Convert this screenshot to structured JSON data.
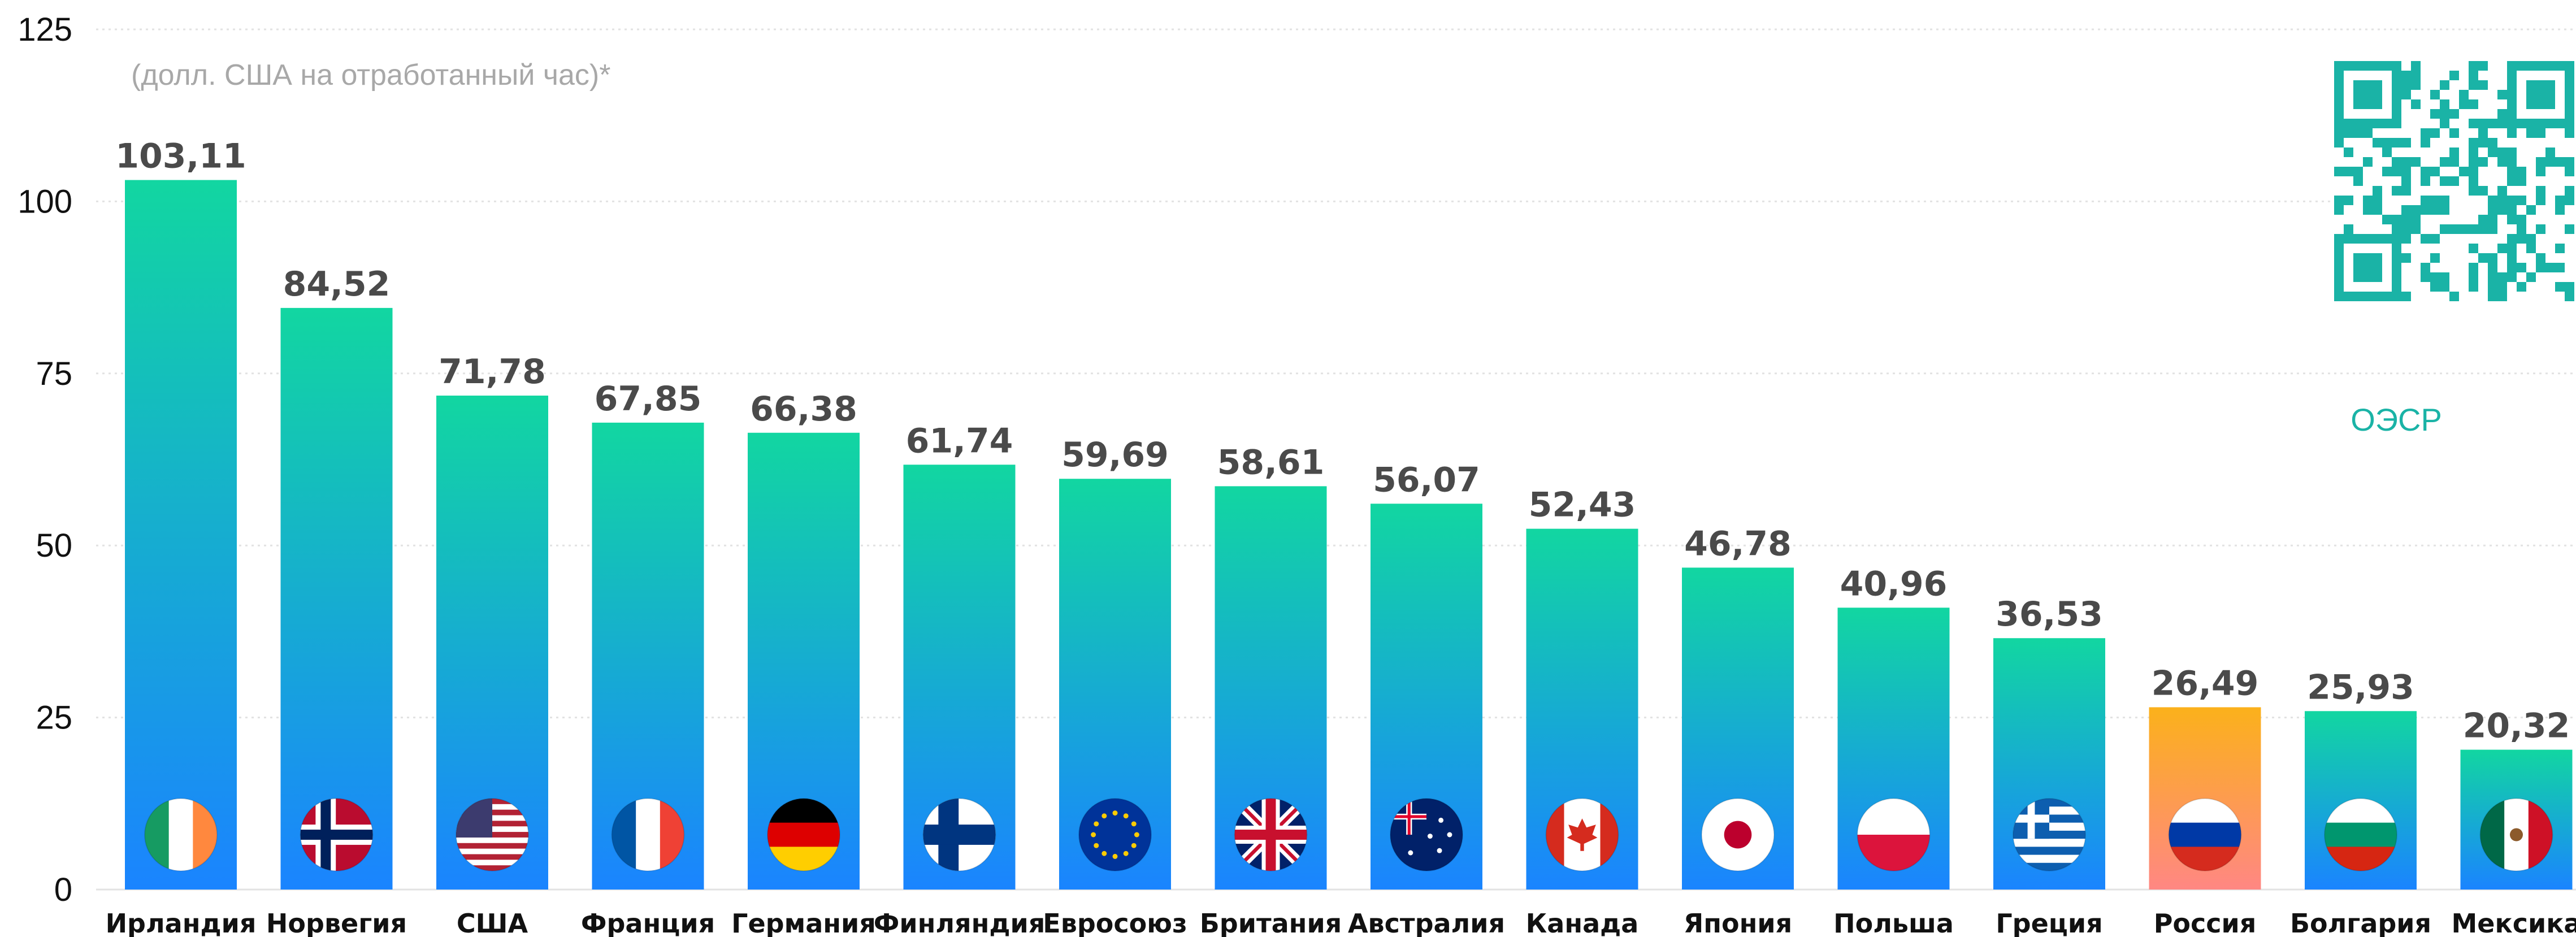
{
  "chart_data": {
    "type": "bar",
    "subtitle": "(долл. США на отработанный час)*",
    "source_label": "ОЭСР",
    "categories": [
      "Ирландия",
      "Норвегия",
      "США",
      "Франция",
      "Германия",
      "Финляндия",
      "Евросоюз",
      "Британия",
      "Австралия",
      "Канада",
      "Япония",
      "Польша",
      "Греция",
      "Россия",
      "Болгария",
      "Мексика"
    ],
    "values": [
      103.11,
      84.52,
      71.78,
      67.85,
      66.38,
      61.74,
      59.69,
      58.61,
      56.07,
      52.43,
      46.78,
      40.96,
      36.53,
      26.49,
      25.93,
      20.32
    ],
    "value_labels": [
      "103,11",
      "84,52",
      "71,78",
      "67,85",
      "66,38",
      "61,74",
      "59,69",
      "58,61",
      "56,07",
      "52,43",
      "46,78",
      "40,96",
      "36,53",
      "26,49",
      "25,93",
      "20,32"
    ],
    "flag_icons": [
      "ireland-flag-icon",
      "norway-flag-icon",
      "usa-flag-icon",
      "france-flag-icon",
      "germany-flag-icon",
      "finland-flag-icon",
      "eu-flag-icon",
      "uk-flag-icon",
      "australia-flag-icon",
      "canada-flag-icon",
      "japan-flag-icon",
      "poland-flag-icon",
      "greece-flag-icon",
      "russia-flag-icon",
      "bulgaria-flag-icon",
      "mexico-flag-icon"
    ],
    "highlight_category": "Россия",
    "yticks": [
      "0",
      "25",
      "50",
      "75",
      "100",
      "125"
    ],
    "ylim": [
      0,
      125
    ],
    "grid": true,
    "colors": {
      "bar_top": "#12d6a1",
      "bar_bottom": "#1a84ff",
      "highlight_top": "#fbb11b",
      "highlight_bottom": "#ff8783",
      "value_label": "#4a4a4a",
      "category_label": "#111111",
      "subtitle": "#a8a8a8",
      "source": "#1ab3a6",
      "grid": "#e2e2e2"
    }
  }
}
